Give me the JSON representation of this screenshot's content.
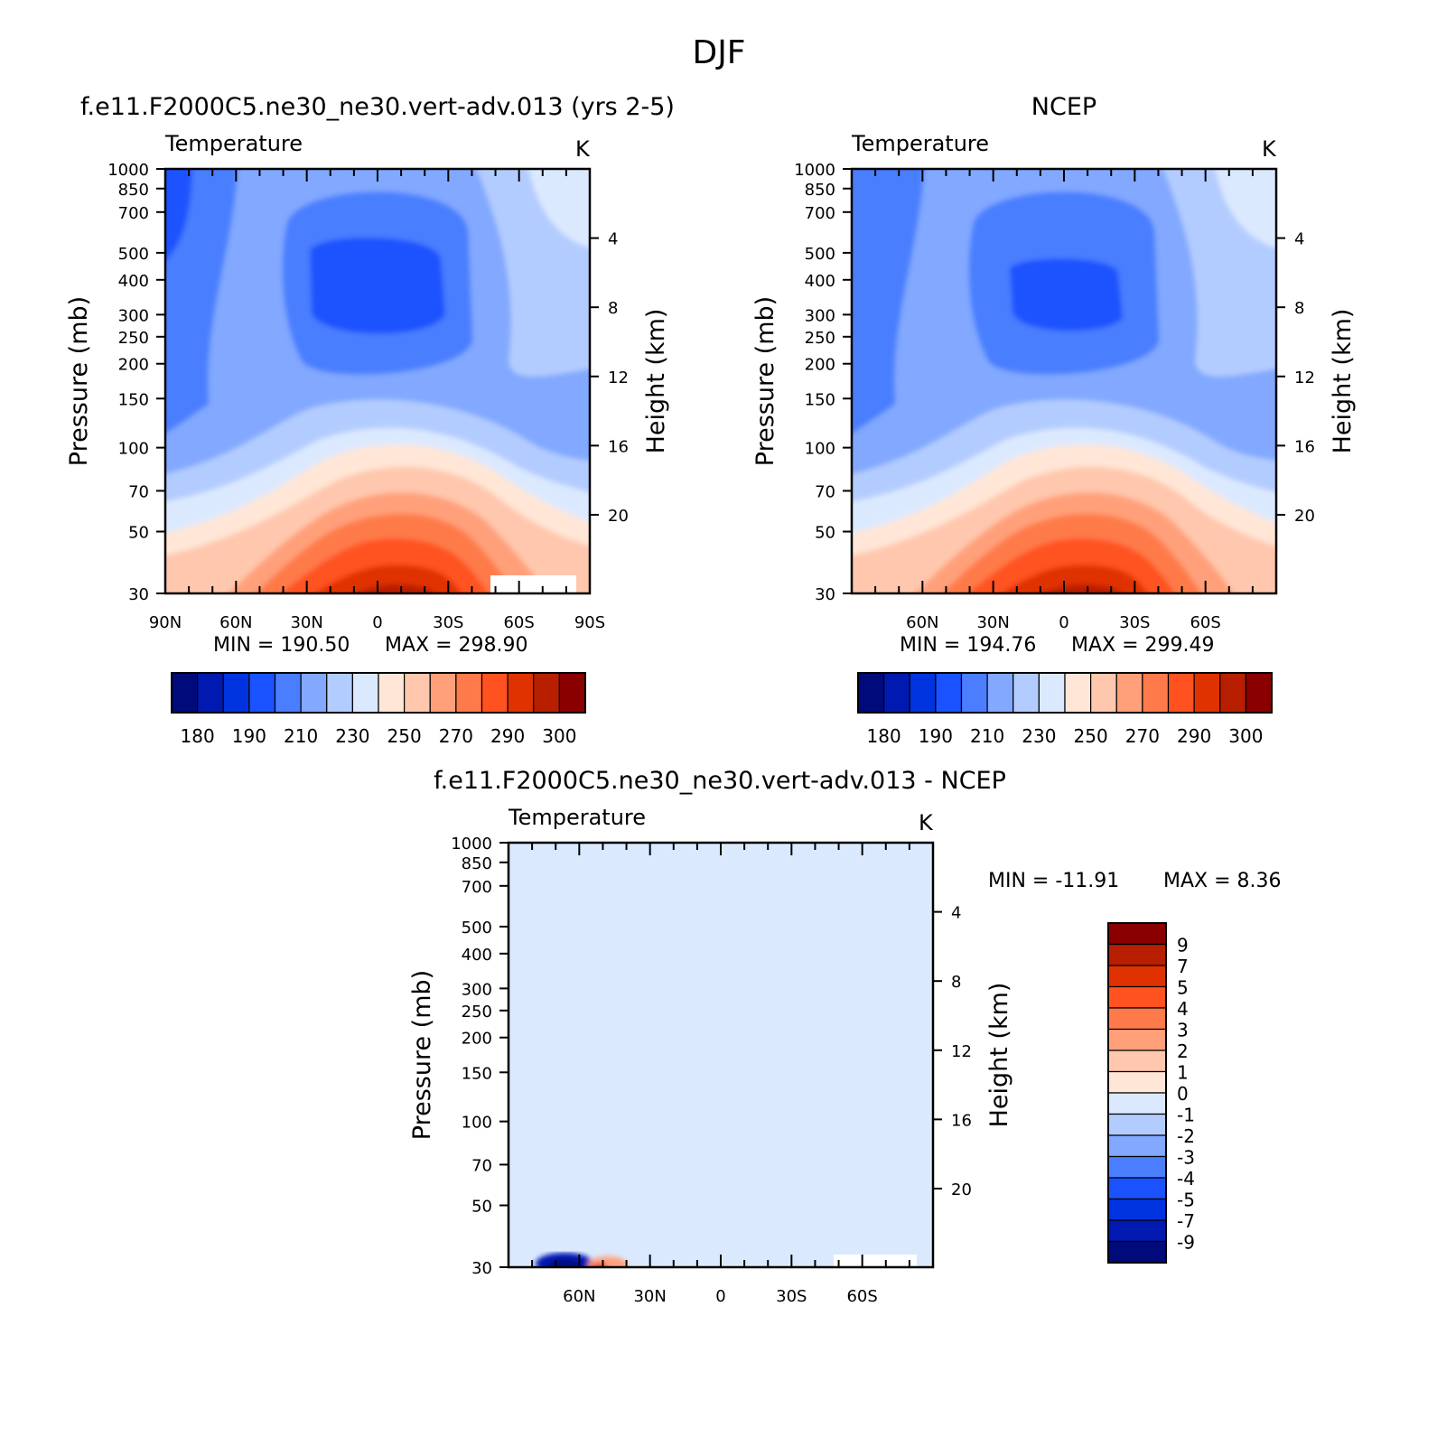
{
  "figure": {
    "title": "DJF"
  },
  "colors": {
    "temp_levels": [
      "#000a7a",
      "#0019b0",
      "#0033e0",
      "#1a52ff",
      "#4a7eff",
      "#82a8ff",
      "#b3ccff",
      "#dbe9ff",
      "#ffe6d6",
      "#ffc7ad",
      "#ffa07a",
      "#ff7a4a",
      "#ff5220",
      "#e03200",
      "#b81e00",
      "#8a0000"
    ],
    "diff_levels": [
      "#000a7a",
      "#0019b0",
      "#0033e0",
      "#1a52ff",
      "#4a7eff",
      "#82a8ff",
      "#b3ccff",
      "#dbe9ff",
      "#ffe6d6",
      "#ffc7ad",
      "#ffa07a",
      "#ff7a4a",
      "#ff5220",
      "#e03200",
      "#b81e00",
      "#8a0000"
    ]
  },
  "chart_data": [
    {
      "type": "heatmap",
      "id": "model",
      "title": "f.e11.F2000C5.ne30_ne30.vert-adv.013 (yrs 2-5)",
      "left_label": "Temperature",
      "units": "K",
      "ylabel": "Pressure (mb)",
      "ylabel_right": "Height (km)",
      "x_ticks": [
        "90N",
        "60N",
        "30N",
        "0",
        "30S",
        "60S",
        "90S"
      ],
      "y_ticks": [
        "30",
        "50",
        "70",
        "100",
        "150",
        "200",
        "250",
        "300",
        "400",
        "500",
        "700",
        "850",
        "1000"
      ],
      "y_ticks_right": [
        "20",
        "16",
        "12",
        "8",
        "4"
      ],
      "xlim": [
        90,
        -90
      ],
      "ylim_mb": [
        1000,
        30
      ],
      "stats": {
        "min": "MIN = 190.50",
        "max": "MAX = 298.90"
      },
      "min": 190.5,
      "max": 298.9,
      "colorbar": {
        "orientation": "horizontal",
        "labels": [
          "180",
          "190",
          "210",
          "230",
          "250",
          "270",
          "290",
          "300"
        ],
        "levels": 16
      }
    },
    {
      "type": "heatmap",
      "id": "obs",
      "title": "NCEP",
      "left_label": "Temperature",
      "units": "K",
      "ylabel": "Pressure (mb)",
      "ylabel_right": "Height (km)",
      "x_ticks": [
        "60N",
        "30N",
        "0",
        "30S",
        "60S"
      ],
      "y_ticks": [
        "30",
        "50",
        "70",
        "100",
        "150",
        "200",
        "250",
        "300",
        "400",
        "500",
        "700",
        "850",
        "1000"
      ],
      "y_ticks_right": [
        "20",
        "16",
        "12",
        "8",
        "4"
      ],
      "xlim": [
        90,
        -90
      ],
      "ylim_mb": [
        1000,
        30
      ],
      "stats": {
        "min": "MIN = 194.76",
        "max": "MAX = 299.49"
      },
      "min": 194.76,
      "max": 299.49,
      "colorbar": {
        "orientation": "horizontal",
        "labels": [
          "180",
          "190",
          "210",
          "230",
          "250",
          "270",
          "290",
          "300"
        ],
        "levels": 16
      }
    },
    {
      "type": "heatmap",
      "id": "diff",
      "title": "f.e11.F2000C5.ne30_ne30.vert-adv.013 - NCEP",
      "left_label": "Temperature",
      "units": "K",
      "ylabel": "Pressure (mb)",
      "ylabel_right": "Height (km)",
      "x_ticks": [
        "60N",
        "30N",
        "0",
        "30S",
        "60S"
      ],
      "y_ticks": [
        "30",
        "50",
        "70",
        "100",
        "150",
        "200",
        "250",
        "300",
        "400",
        "500",
        "700",
        "850",
        "1000"
      ],
      "y_ticks_right": [
        "20",
        "16",
        "12",
        "8",
        "4"
      ],
      "xlim": [
        90,
        -90
      ],
      "ylim_mb": [
        1000,
        30
      ],
      "stats": {
        "min": "MIN = -11.91",
        "max": "MAX = 8.36"
      },
      "min": -11.91,
      "max": 8.36,
      "colorbar": {
        "orientation": "vertical",
        "labels": [
          "9",
          "7",
          "5",
          "4",
          "3",
          "2",
          "1",
          "0",
          "-1",
          "-2",
          "-3",
          "-4",
          "-5",
          "-7",
          "-9"
        ],
        "levels": 16
      }
    }
  ]
}
